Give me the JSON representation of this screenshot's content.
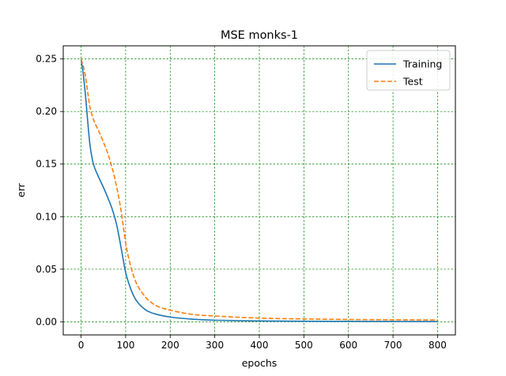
{
  "chart_data": {
    "type": "line",
    "title": "MSE monks-1",
    "xlabel": "epochs",
    "ylabel": "err",
    "xlim": [
      -40,
      840
    ],
    "ylim": [
      -0.0125,
      0.2625
    ],
    "xticks": [
      0,
      100,
      200,
      300,
      400,
      500,
      600,
      700,
      800
    ],
    "xtick_labels": [
      "0",
      "100",
      "200",
      "300",
      "400",
      "500",
      "600",
      "700",
      "800"
    ],
    "yticks": [
      0.0,
      0.05,
      0.1,
      0.15,
      0.2,
      0.25
    ],
    "ytick_labels": [
      "0.00",
      "0.05",
      "0.10",
      "0.15",
      "0.20",
      "0.25"
    ],
    "grid": true,
    "grid_color": "#008000",
    "legend_position": "top-right",
    "series": [
      {
        "name": "Training",
        "color": "#1f77b4",
        "dash": "solid",
        "x": [
          0,
          5,
          10,
          15,
          20,
          25,
          30,
          40,
          50,
          60,
          70,
          80,
          90,
          100,
          110,
          120,
          130,
          140,
          150,
          170,
          200,
          250,
          300,
          400,
          500,
          600,
          700,
          800
        ],
        "y": [
          0.25,
          0.235,
          0.215,
          0.19,
          0.168,
          0.155,
          0.147,
          0.137,
          0.128,
          0.118,
          0.107,
          0.092,
          0.07,
          0.047,
          0.033,
          0.023,
          0.017,
          0.013,
          0.01,
          0.007,
          0.0045,
          0.0025,
          0.0015,
          0.0008,
          0.0005,
          0.0004,
          0.0003,
          0.0002
        ]
      },
      {
        "name": "Test",
        "color": "#ff7f0e",
        "dash": "dashed",
        "x": [
          0,
          5,
          10,
          15,
          20,
          25,
          30,
          40,
          50,
          60,
          70,
          80,
          90,
          100,
          110,
          120,
          130,
          140,
          150,
          170,
          200,
          250,
          300,
          400,
          500,
          600,
          700,
          800
        ],
        "y": [
          0.25,
          0.243,
          0.233,
          0.218,
          0.204,
          0.196,
          0.19,
          0.181,
          0.171,
          0.16,
          0.146,
          0.128,
          0.105,
          0.075,
          0.055,
          0.041,
          0.032,
          0.026,
          0.021,
          0.015,
          0.011,
          0.007,
          0.0055,
          0.0035,
          0.0027,
          0.0022,
          0.0019,
          0.0017
        ]
      }
    ]
  }
}
